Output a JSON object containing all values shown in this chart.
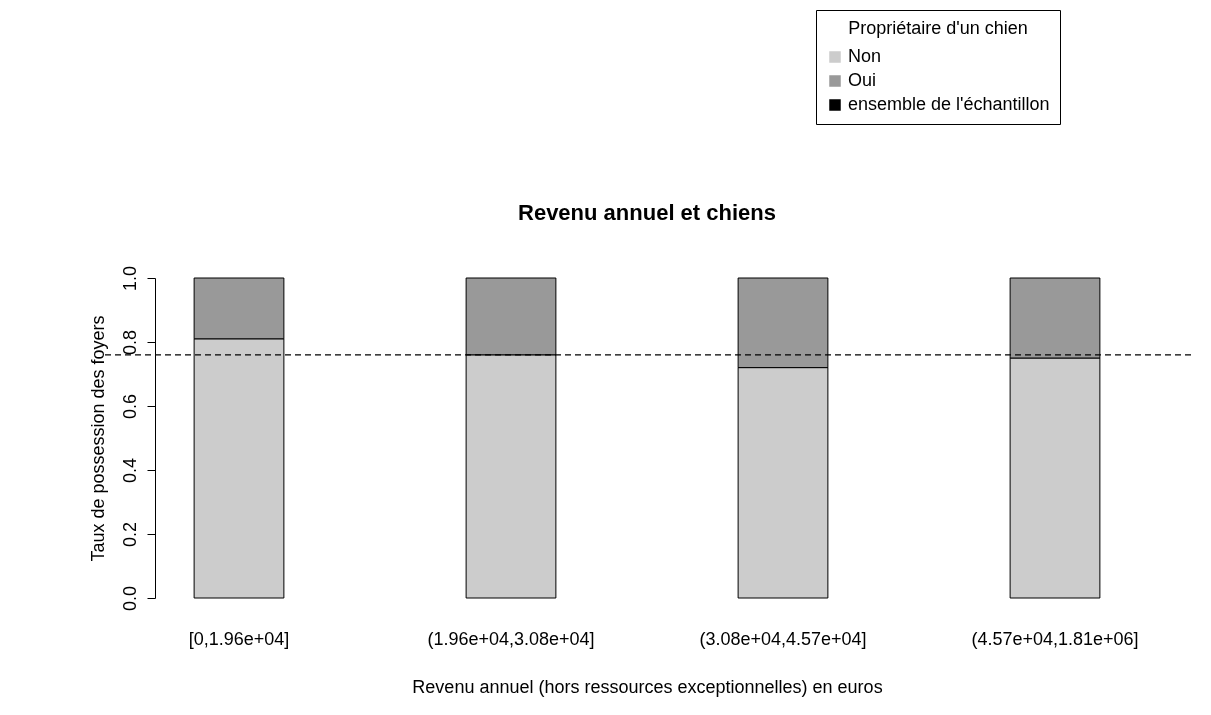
{
  "chart_data": {
    "type": "bar",
    "title": "Revenu annuel et chiens",
    "xlabel": "Revenu annuel (hors ressources exceptionnelles) en euros",
    "ylabel": "Taux de possession des foyers",
    "legend_title": "Propriétaire d'un chien",
    "categories": [
      "[0,1.96e+04]",
      "(1.96e+04,3.08e+04]",
      "(3.08e+04,4.57e+04]",
      "(4.57e+04,1.81e+06]"
    ],
    "series": [
      {
        "name": "Non",
        "color": "#cccccc",
        "values": [
          0.81,
          0.76,
          0.72,
          0.75
        ]
      },
      {
        "name": "Oui",
        "color": "#999999",
        "values": [
          0.19,
          0.24,
          0.28,
          0.25
        ]
      }
    ],
    "stacked": true,
    "ylim": [
      0,
      1
    ],
    "yticks": [
      {
        "value": 0,
        "label": "0.0"
      },
      0.2,
      0.4,
      0.6,
      0.8,
      {
        "value": 1,
        "label": "1.0"
      }
    ],
    "ref_lines": [
      {
        "axis": "y",
        "value": 0.76,
        "label": "ensemble de l'échantillon",
        "color": "#000000",
        "line_style": "dashed"
      }
    ],
    "legend": "top right"
  }
}
